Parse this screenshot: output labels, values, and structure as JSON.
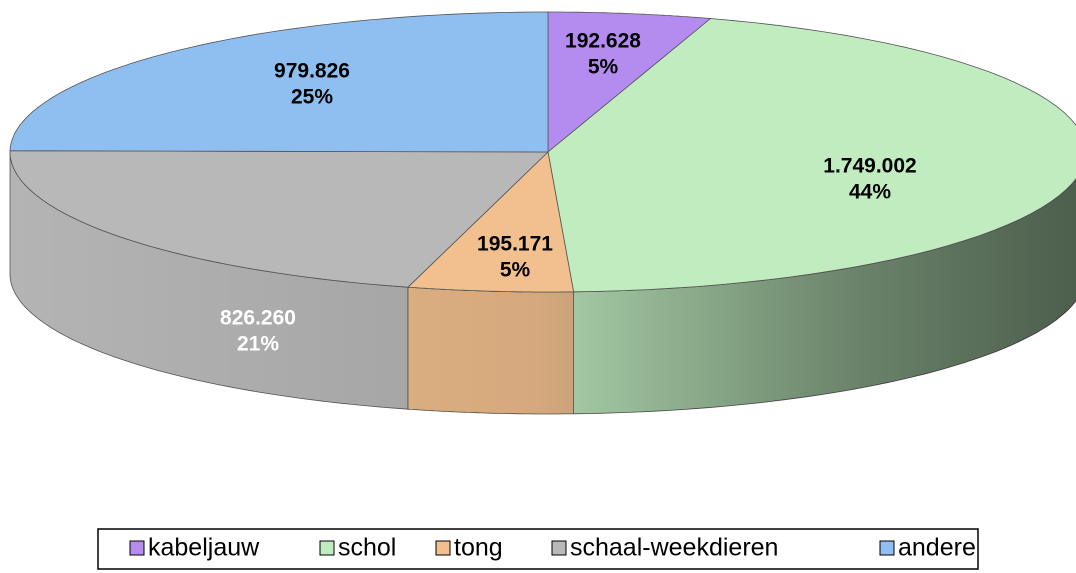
{
  "chart_data": {
    "type": "pie3d",
    "categories": [
      "kabeljauw",
      "schol",
      "tong",
      "schaal-weekdieren",
      "andere"
    ],
    "values": [
      192628,
      1749002,
      195171,
      826260,
      979826
    ],
    "value_labels": [
      "192.628",
      "1.749.002",
      "195.171",
      "826.260",
      "979.826"
    ],
    "percent_labels": [
      "5%",
      "44%",
      "5%",
      "21%",
      "25%"
    ],
    "colors": [
      "#b48cf0",
      "#c0ecc0",
      "#f2c08e",
      "#b8b8b8",
      "#8fbff0"
    ],
    "legend": "bottom"
  }
}
